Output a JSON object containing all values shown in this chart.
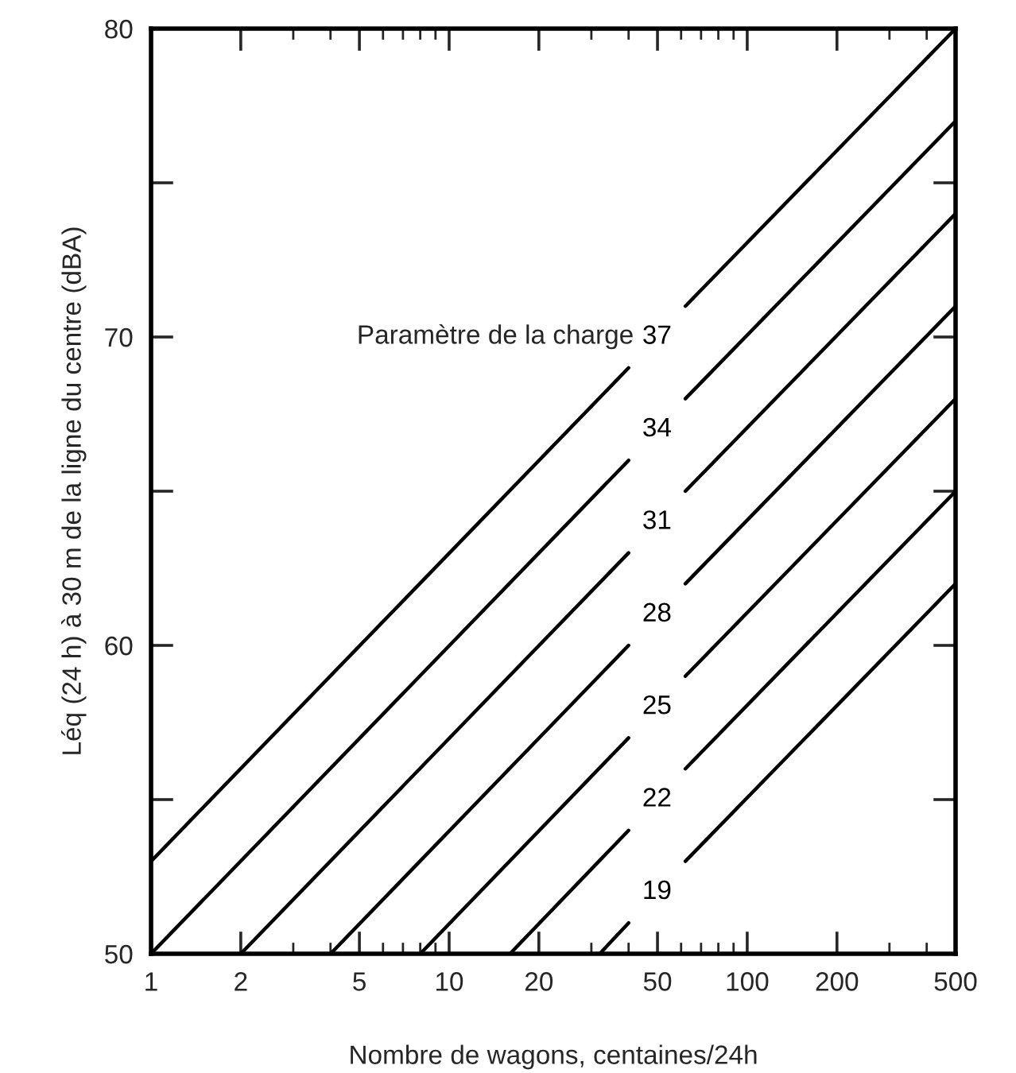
{
  "chart_data": {
    "type": "line",
    "xlabel": "Nombre de wagons, centaines/24h",
    "ylabel": "Léq (24 h) à 30 m de la ligne du centre (dBA)",
    "log": "x",
    "xlim": [
      1,
      500
    ],
    "xticks": [
      1,
      2,
      5,
      10,
      20,
      50,
      100,
      200,
      500
    ],
    "ylim": [
      50,
      80
    ],
    "yticks": [
      50,
      {
        "value": 55,
        "label": null
      },
      60,
      {
        "value": 65,
        "label": null
      },
      70,
      {
        "value": 75,
        "label": null
      },
      80
    ],
    "grid": false,
    "legend": false,
    "marker": "none",
    "line_style": "solid",
    "series": [
      {
        "name": "37",
        "color": "#000000",
        "x": [
          1,
          40,
          50,
          62,
          500
        ],
        "values": [
          53,
          69,
          null,
          71,
          80
        ]
      },
      {
        "name": "34",
        "color": "#000000",
        "x": [
          1,
          40,
          50,
          62,
          500
        ],
        "values": [
          50,
          66,
          null,
          68,
          77
        ]
      },
      {
        "name": "31",
        "color": "#000000",
        "x": [
          2,
          40,
          50,
          62,
          500
        ],
        "values": [
          50,
          63,
          null,
          65,
          74
        ]
      },
      {
        "name": "28",
        "color": "#000000",
        "x": [
          4,
          40,
          50,
          62,
          500
        ],
        "values": [
          50,
          60,
          null,
          62,
          71
        ]
      },
      {
        "name": "25",
        "color": "#000000",
        "x": [
          8,
          40,
          50,
          62,
          500
        ],
        "values": [
          50,
          57,
          null,
          59,
          68
        ]
      },
      {
        "name": "22",
        "color": "#000000",
        "x": [
          16,
          40,
          50,
          62,
          500
        ],
        "values": [
          50,
          54,
          null,
          56,
          65
        ]
      },
      {
        "name": "19",
        "color": "#000000",
        "x": [
          32,
          40,
          50,
          62,
          500
        ],
        "values": [
          50,
          51,
          null,
          53,
          62
        ]
      }
    ],
    "annotations": [
      "Paramètre de la charge"
    ]
  }
}
